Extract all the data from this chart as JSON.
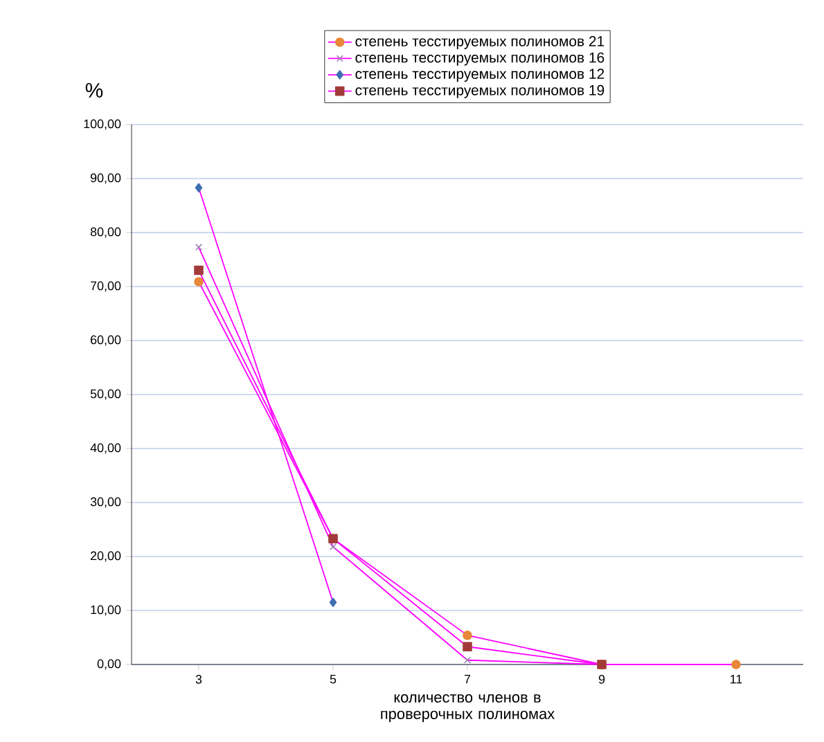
{
  "chart_data": {
    "type": "line",
    "ylabel": "%",
    "xlabel": "количество членов в проверочных полиномах",
    "categories": [
      "3",
      "5",
      "7",
      "9",
      "11"
    ],
    "series": [
      {
        "name": "степень тесстируемых полиномов 21",
        "color": "#e8873a",
        "marker": "circle",
        "values": [
          70.9,
          23.3,
          5.4,
          0,
          0
        ]
      },
      {
        "name": "степень тесстируемых полиномов 16",
        "color": "#9b7fb0",
        "marker": "cross",
        "values": [
          77.3,
          21.8,
          0.8,
          0,
          null
        ]
      },
      {
        "name": "степень тесстируемых полиномов 12",
        "color": "#3f6fb0",
        "marker": "diamond",
        "values": [
          88.3,
          11.5,
          null,
          null,
          null
        ]
      },
      {
        "name": "степень тесстируемых полиномов 19",
        "color": "#a33a3a",
        "marker": "square",
        "values": [
          73.0,
          23.3,
          3.3,
          0,
          null
        ]
      }
    ],
    "ylim": [
      0,
      100
    ],
    "yticks": [
      {
        "value": 0,
        "label": "0,00"
      },
      {
        "value": 10,
        "label": "10,00"
      },
      {
        "value": 20,
        "label": "20,00"
      },
      {
        "value": 30,
        "label": "30,00"
      },
      {
        "value": 40,
        "label": "40,00"
      },
      {
        "value": 50,
        "label": "50,00"
      },
      {
        "value": 60,
        "label": "60,00"
      },
      {
        "value": 70,
        "label": "70,00"
      },
      {
        "value": 80,
        "label": "80,00"
      },
      {
        "value": 90,
        "label": "90,00"
      },
      {
        "value": 100,
        "label": "100,00"
      }
    ],
    "grid": "y",
    "legend": "top",
    "line_style": "solid"
  }
}
